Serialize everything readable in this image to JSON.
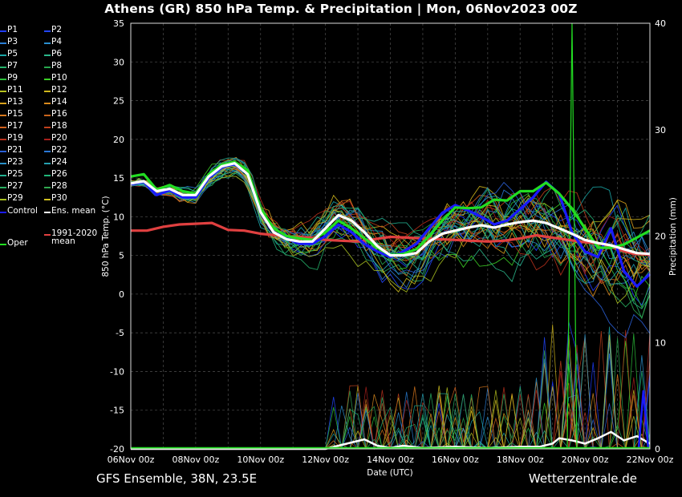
{
  "title": "Athens  (GR)  850 hPa Temp. & Precipitation | Mon, 06Nov2023 00Z",
  "footer_left": "GFS Ensemble, 38N, 23.5E",
  "footer_right": "Wetterzentrale.de",
  "legend": [
    {
      "label": "P1",
      "color": "#1f3cff"
    },
    {
      "label": "P2",
      "color": "#2246ff"
    },
    {
      "label": "P3",
      "color": "#2a7fd6"
    },
    {
      "label": "P4",
      "color": "#2a8fd0"
    },
    {
      "label": "P5",
      "color": "#1aa7a7"
    },
    {
      "label": "P6",
      "color": "#2ab58a"
    },
    {
      "label": "P7",
      "color": "#25b36a"
    },
    {
      "label": "P8",
      "color": "#27a64e"
    },
    {
      "label": "P9",
      "color": "#2bbf3a"
    },
    {
      "label": "P10",
      "color": "#3ccf26"
    },
    {
      "label": "P11",
      "color": "#b6c21d"
    },
    {
      "label": "P12",
      "color": "#d0b71c"
    },
    {
      "label": "P13",
      "color": "#d9a21c"
    },
    {
      "label": "P14",
      "color": "#d98a1c"
    },
    {
      "label": "P15",
      "color": "#d9781c"
    },
    {
      "label": "P16",
      "color": "#c8641c"
    },
    {
      "label": "P17",
      "color": "#d2601c"
    },
    {
      "label": "P18",
      "color": "#c0401c"
    },
    {
      "label": "P19",
      "color": "#b8301c"
    },
    {
      "label": "P20",
      "color": "#a8201c"
    },
    {
      "label": "P21",
      "color": "#2a5fd6"
    },
    {
      "label": "P22",
      "color": "#2a78d6"
    },
    {
      "label": "P23",
      "color": "#2a90c8"
    },
    {
      "label": "P24",
      "color": "#25a0b0"
    },
    {
      "label": "P25",
      "color": "#22b090"
    },
    {
      "label": "P26",
      "color": "#20b578"
    },
    {
      "label": "P27",
      "color": "#28b060"
    },
    {
      "label": "P28",
      "color": "#30a850"
    },
    {
      "label": "P29",
      "color": "#a8c020"
    },
    {
      "label": "P30",
      "color": "#d0c020"
    },
    {
      "label": "Control",
      "color": "#1a1aff"
    },
    {
      "label": "Ens. mean",
      "color": "#ffffff"
    },
    {
      "label": "Oper",
      "color": "#22dd22"
    },
    {
      "label": "1991-2020\nmean",
      "color": "#e04040"
    }
  ],
  "chart_data": {
    "type": "line",
    "title": "Athens  (GR)  850 hPa Temp. & Precipitation | Mon, 06Nov2023 00Z",
    "xlabel": "Date (UTC)",
    "ylabel": "850 hPa Temp. (°C)",
    "y2label": "Precipitation (mm)",
    "x_ticks": [
      "06Nov 00z",
      "08Nov 00z",
      "10Nov 00z",
      "12Nov 00z",
      "14Nov 00z",
      "16Nov 00z",
      "18Nov 00z",
      "20Nov 00z",
      "22Nov 00z"
    ],
    "y_ticks": [
      35,
      30,
      25,
      20,
      15,
      10,
      5,
      0,
      -5,
      -10,
      -15,
      -20
    ],
    "y2_ticks": [
      40,
      30,
      20,
      10,
      0
    ],
    "ylim": [
      -20,
      35
    ],
    "y2lim": [
      0,
      40
    ],
    "xlim_days": [
      0,
      16
    ],
    "grid": true,
    "series": [
      {
        "name": "Oper",
        "color": "#22dd22",
        "values": [
          [
            0,
            15.2
          ],
          [
            0.4,
            15.5
          ],
          [
            0.8,
            13.5
          ],
          [
            1.2,
            14.1
          ],
          [
            1.6,
            13.3
          ],
          [
            2,
            13
          ],
          [
            2.4,
            15.5
          ],
          [
            2.8,
            16.7
          ],
          [
            3.2,
            17.1
          ],
          [
            3.6,
            16
          ],
          [
            4,
            11
          ],
          [
            4.4,
            8.5
          ],
          [
            4.8,
            7.5
          ],
          [
            5.2,
            7.2
          ],
          [
            5.6,
            7
          ],
          [
            6,
            8
          ],
          [
            6.4,
            9.5
          ],
          [
            6.8,
            8.5
          ],
          [
            7.2,
            7.2
          ],
          [
            7.6,
            6
          ],
          [
            8,
            5
          ],
          [
            8.4,
            5.2
          ],
          [
            8.8,
            5.8
          ],
          [
            9.2,
            7.5
          ],
          [
            9.6,
            9.5
          ],
          [
            10,
            11.2
          ],
          [
            10.4,
            11.1
          ],
          [
            10.8,
            11.2
          ],
          [
            11.2,
            12.2
          ],
          [
            11.6,
            12.1
          ],
          [
            12,
            13.3
          ],
          [
            12.4,
            13.3
          ],
          [
            12.8,
            14.4
          ],
          [
            13.2,
            13
          ],
          [
            13.6,
            11
          ],
          [
            14,
            8.5
          ],
          [
            14.4,
            6
          ],
          [
            14.8,
            6
          ],
          [
            15.2,
            6.4
          ],
          [
            15.6,
            7.3
          ],
          [
            16,
            8.2
          ]
        ]
      },
      {
        "name": "Control",
        "color": "#1a1aff",
        "values": [
          [
            0,
            14.2
          ],
          [
            0.4,
            14.5
          ],
          [
            0.8,
            12.8
          ],
          [
            1.2,
            13.4
          ],
          [
            1.6,
            12.5
          ],
          [
            2,
            12.5
          ],
          [
            2.4,
            15
          ],
          [
            2.8,
            16.4
          ],
          [
            3.2,
            16.8
          ],
          [
            3.6,
            15.5
          ],
          [
            4,
            10.5
          ],
          [
            4.4,
            8
          ],
          [
            4.8,
            7.2
          ],
          [
            5.2,
            6.5
          ],
          [
            5.6,
            6.5
          ],
          [
            6,
            7.5
          ],
          [
            6.4,
            9
          ],
          [
            6.8,
            8
          ],
          [
            7.2,
            6.5
          ],
          [
            7.6,
            5.5
          ],
          [
            8,
            4.8
          ],
          [
            8.4,
            5.5
          ],
          [
            8.8,
            6.5
          ],
          [
            9.2,
            8.5
          ],
          [
            9.6,
            10.5
          ],
          [
            10,
            11.5
          ],
          [
            10.4,
            10.8
          ],
          [
            10.8,
            10
          ],
          [
            11.2,
            9
          ],
          [
            11.6,
            9.5
          ],
          [
            12,
            11
          ],
          [
            12.4,
            12.5
          ],
          [
            12.8,
            14.5
          ],
          [
            13.2,
            13
          ],
          [
            13.6,
            8
          ],
          [
            14,
            5.5
          ],
          [
            14.4,
            4.8
          ],
          [
            14.8,
            8.5
          ],
          [
            15.2,
            3
          ],
          [
            15.6,
            1
          ],
          [
            16,
            2.6
          ]
        ]
      },
      {
        "name": "Ens. mean",
        "color": "#ffffff",
        "values": [
          [
            0,
            14.3
          ],
          [
            0.4,
            14.6
          ],
          [
            0.8,
            13.3
          ],
          [
            1.2,
            13.6
          ],
          [
            1.6,
            12.8
          ],
          [
            2,
            12.8
          ],
          [
            2.4,
            15.2
          ],
          [
            2.8,
            16.5
          ],
          [
            3.2,
            16.9
          ],
          [
            3.6,
            15.5
          ],
          [
            4,
            10.6
          ],
          [
            4.4,
            8
          ],
          [
            4.8,
            7.1
          ],
          [
            5.2,
            6.8
          ],
          [
            5.6,
            6.8
          ],
          [
            6,
            8.5
          ],
          [
            6.4,
            10.2
          ],
          [
            6.8,
            9.5
          ],
          [
            7.2,
            8
          ],
          [
            7.6,
            6.2
          ],
          [
            8,
            5
          ],
          [
            8.4,
            5
          ],
          [
            8.8,
            5.3
          ],
          [
            9.2,
            6.8
          ],
          [
            9.6,
            7.8
          ],
          [
            10,
            8.2
          ],
          [
            10.4,
            8.6
          ],
          [
            10.8,
            8.9
          ],
          [
            11.2,
            8.6
          ],
          [
            11.6,
            9
          ],
          [
            12,
            9.3
          ],
          [
            12.4,
            9.5
          ],
          [
            12.8,
            9.2
          ],
          [
            13.2,
            8.5
          ],
          [
            13.6,
            7.8
          ],
          [
            14,
            7
          ],
          [
            14.4,
            6.6
          ],
          [
            14.8,
            6.3
          ],
          [
            15.2,
            5.8
          ],
          [
            15.6,
            5.3
          ],
          [
            16,
            5.2
          ]
        ]
      },
      {
        "name": "1991-2020 mean",
        "color": "#e04040",
        "values": [
          [
            0,
            8.2
          ],
          [
            0.5,
            8.2
          ],
          [
            1,
            8.7
          ],
          [
            1.5,
            9
          ],
          [
            2,
            9.1
          ],
          [
            2.5,
            9.2
          ],
          [
            3,
            8.3
          ],
          [
            3.5,
            8.2
          ],
          [
            4,
            7.8
          ],
          [
            4.5,
            7.6
          ],
          [
            5,
            7.4
          ],
          [
            5.5,
            7.3
          ],
          [
            6,
            7
          ],
          [
            6.5,
            6.9
          ],
          [
            7,
            6.8
          ],
          [
            7.5,
            7.1
          ],
          [
            8,
            7.4
          ],
          [
            8.5,
            7.3
          ],
          [
            9,
            7.2
          ],
          [
            9.5,
            7.1
          ],
          [
            10,
            7
          ],
          [
            10.5,
            6.9
          ],
          [
            11,
            6.8
          ],
          [
            11.5,
            6.9
          ],
          [
            12,
            7.2
          ],
          [
            12.5,
            7.6
          ],
          [
            13,
            7.3
          ],
          [
            13.5,
            7
          ],
          [
            14,
            6.7
          ],
          [
            14.5,
            6.5
          ],
          [
            15,
            5.8
          ],
          [
            15.5,
            5.2
          ],
          [
            16,
            5.1
          ]
        ]
      }
    ],
    "precipitation": {
      "ens_mean_mm": [
        [
          0,
          0
        ],
        [
          6,
          0
        ],
        [
          6.8,
          0.6
        ],
        [
          7.2,
          0.9
        ],
        [
          7.6,
          0.3
        ],
        [
          8,
          0.1
        ],
        [
          8.4,
          0.3
        ],
        [
          9,
          0.1
        ],
        [
          10,
          0.2
        ],
        [
          11,
          0.1
        ],
        [
          12,
          0.2
        ],
        [
          12.6,
          0.2
        ],
        [
          13,
          0.5
        ],
        [
          13.2,
          1
        ],
        [
          13.6,
          0.8
        ],
        [
          14,
          0.5
        ],
        [
          14.4,
          1
        ],
        [
          14.8,
          1.6
        ],
        [
          15.2,
          0.8
        ],
        [
          15.6,
          1.2
        ],
        [
          16,
          0.5
        ]
      ],
      "oper_peak_mm": [
        [
          13.6,
          40
        ]
      ],
      "control_peak_mm": [
        [
          15.8,
          5.5
        ]
      ]
    }
  }
}
